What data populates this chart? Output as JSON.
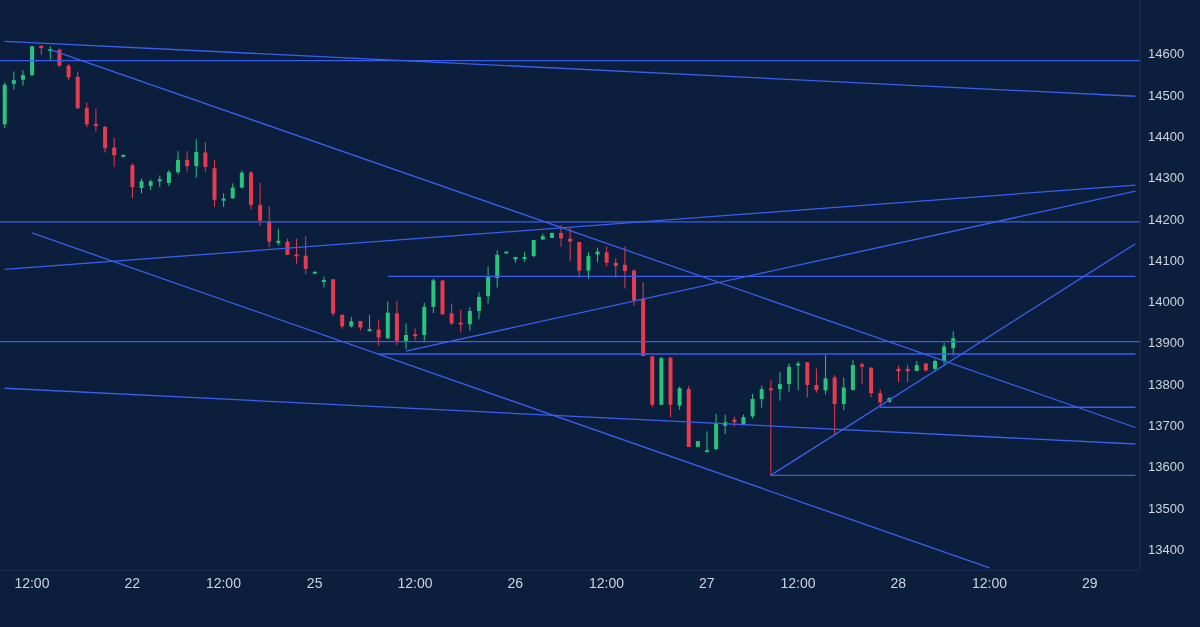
{
  "chart_data": {
    "type": "candlestick",
    "categories": [
      null,
      null,
      null,
      "12:00",
      null,
      null,
      null,
      null,
      null,
      null,
      null,
      null,
      null,
      null,
      "22",
      null,
      null,
      null,
      null,
      null,
      null,
      null,
      null,
      null,
      "12:00",
      null,
      null,
      null,
      null,
      null,
      null,
      null,
      null,
      null,
      "25",
      null,
      null,
      null,
      null,
      null,
      null,
      null,
      null,
      null,
      null,
      "12:00",
      null,
      null,
      null,
      null,
      null,
      null,
      null,
      null,
      null,
      null,
      "26",
      null,
      null,
      null,
      null,
      null,
      null,
      null,
      null,
      null,
      "12:00",
      null,
      null,
      null,
      null,
      null,
      null,
      null,
      null,
      null,
      null,
      "27",
      null,
      null,
      null,
      null,
      null,
      null,
      null,
      null,
      null,
      "12:00",
      null,
      null,
      null,
      null,
      null,
      null,
      null,
      null,
      null,
      null,
      "28",
      null,
      null,
      null,
      null,
      null,
      null,
      null,
      null,
      null,
      "12:00",
      null,
      null,
      null,
      null,
      null,
      null,
      null,
      null,
      null,
      null,
      "29",
      null,
      null,
      null,
      null,
      null
    ],
    "ohlc": [
      [
        14429,
        14530,
        14420,
        14525
      ],
      [
        14527,
        14557,
        14513,
        14536
      ],
      [
        14537,
        14560,
        14523,
        14548
      ],
      [
        14548,
        14618,
        14546,
        14618
      ],
      [
        14619,
        14620,
        14597,
        14614
      ],
      [
        14609,
        14618,
        14586,
        14611
      ],
      [
        14610,
        14612,
        14568,
        14571
      ],
      [
        14571,
        14575,
        14536,
        14543
      ],
      [
        14544,
        14557,
        14466,
        14468
      ],
      [
        14469,
        14482,
        14422,
        14429
      ],
      [
        14430,
        14466,
        14412,
        14425
      ],
      [
        14423,
        14425,
        14361,
        14371
      ],
      [
        14373,
        14396,
        14326,
        14354
      ],
      [
        14353,
        14356,
        14352,
        14355
      ],
      [
        14330,
        14335,
        14250,
        14277
      ],
      [
        14275,
        14298,
        14262,
        14291
      ],
      [
        14280,
        14295,
        14270,
        14291
      ],
      [
        14292,
        14305,
        14277,
        14296
      ],
      [
        14287,
        14318,
        14280,
        14313
      ],
      [
        14313,
        14364,
        14308,
        14343
      ],
      [
        14343,
        14364,
        14315,
        14328
      ],
      [
        14328,
        14393,
        14300,
        14362
      ],
      [
        14361,
        14386,
        14314,
        14326
      ],
      [
        14323,
        14343,
        14229,
        14246
      ],
      [
        14246,
        14262,
        14229,
        14249
      ],
      [
        14250,
        14286,
        14248,
        14276
      ],
      [
        14276,
        14317,
        14274,
        14312
      ],
      [
        14312,
        14316,
        14223,
        14234
      ],
      [
        14234,
        14287,
        14183,
        14196
      ],
      [
        14194,
        14230,
        14132,
        14145
      ],
      [
        14144,
        14176,
        14137,
        14147
      ],
      [
        14145,
        14152,
        14112,
        14113
      ],
      [
        14114,
        14152,
        14091,
        14110
      ],
      [
        14111,
        14158,
        14066,
        14079
      ],
      [
        14071,
        14073,
        14070,
        14072
      ],
      [
        14049,
        14060,
        14034,
        14052
      ],
      [
        14054,
        14054,
        13964,
        13971
      ],
      [
        13968,
        13968,
        13934,
        13940
      ],
      [
        13940,
        13963,
        13937,
        13952
      ],
      [
        13953,
        13953,
        13930,
        13937
      ],
      [
        13932,
        13967,
        13930,
        13933
      ],
      [
        13932,
        13956,
        13893,
        13913
      ],
      [
        13911,
        14000,
        13909,
        13973
      ],
      [
        13971,
        14001,
        13894,
        13905
      ],
      [
        13904,
        13947,
        13885,
        13919
      ],
      [
        13921,
        13935,
        13906,
        13919
      ],
      [
        13919,
        13997,
        13902,
        13987
      ],
      [
        13987,
        14056,
        13972,
        14051
      ],
      [
        14051,
        14051,
        13968,
        13969
      ],
      [
        13971,
        13995,
        13943,
        13947
      ],
      [
        13949,
        13980,
        13925,
        13945
      ],
      [
        13945,
        13987,
        13929,
        13977
      ],
      [
        13977,
        14022,
        13957,
        14011
      ],
      [
        14013,
        14085,
        13995,
        14059
      ],
      [
        14057,
        14124,
        14034,
        14113
      ],
      [
        14120,
        14121,
        14120,
        14121
      ],
      [
        14102,
        14108,
        14094,
        14108
      ],
      [
        14107,
        14120,
        14096,
        14108
      ],
      [
        14110,
        14149,
        14107,
        14149
      ],
      [
        14150,
        14164,
        14150,
        14158
      ],
      [
        14154,
        14167,
        14154,
        14166
      ],
      [
        14166,
        14185,
        14133,
        14153
      ],
      [
        14152,
        14178,
        14097,
        14145
      ],
      [
        14144,
        14144,
        14058,
        14075
      ],
      [
        14075,
        14120,
        14055,
        14110
      ],
      [
        14114,
        14130,
        14095,
        14121
      ],
      [
        14119,
        14133,
        14085,
        14094
      ],
      [
        14094,
        14104,
        14058,
        14086
      ],
      [
        14089,
        14133,
        14032,
        14074
      ],
      [
        14075,
        14078,
        13990,
        14003
      ],
      [
        14007,
        14047,
        13868,
        13868
      ],
      [
        13867,
        13868,
        13744,
        13750
      ],
      [
        13750,
        13866,
        13750,
        13863
      ],
      [
        13864,
        13866,
        13720,
        13750
      ],
      [
        13748,
        13794,
        13738,
        13790
      ],
      [
        13788,
        13796,
        13648,
        13648
      ],
      [
        13648,
        13662,
        13648,
        13662
      ],
      [
        13639,
        13686,
        13636,
        13640
      ],
      [
        13643,
        13728,
        13640,
        13706
      ],
      [
        13699,
        13726,
        13679,
        13708
      ],
      [
        13714,
        13721,
        13697,
        13708
      ],
      [
        13702,
        13726,
        13700,
        13720
      ],
      [
        13722,
        13776,
        13717,
        13764
      ],
      [
        13764,
        13796,
        13743,
        13788
      ],
      [
        13790,
        13810,
        13579,
        13786
      ],
      [
        13788,
        13830,
        13760,
        13800
      ],
      [
        13800,
        13850,
        13781,
        13842
      ],
      [
        13845,
        13855,
        13785,
        13850
      ],
      [
        13853,
        13853,
        13768,
        13798
      ],
      [
        13798,
        13838,
        13779,
        13786
      ],
      [
        13785,
        13870,
        13775,
        13814
      ],
      [
        13816,
        13822,
        13678,
        13752
      ],
      [
        13752,
        13816,
        13737,
        13792
      ],
      [
        13786,
        13858,
        13784,
        13846
      ],
      [
        13848,
        13852,
        13800,
        13842
      ],
      [
        13840,
        13840,
        13768,
        13778
      ],
      [
        13778,
        13787,
        13744,
        13756
      ],
      [
        13757,
        13768,
        13755,
        13766
      ],
      [
        13837,
        13845,
        13805,
        13831
      ],
      [
        13837,
        13847,
        13805,
        13831
      ],
      [
        13832,
        13856,
        13832,
        13846
      ],
      [
        13850,
        13850,
        13831,
        13833
      ],
      [
        13837,
        13860,
        13830,
        13856
      ],
      [
        13856,
        13900,
        13847,
        13891
      ],
      [
        13887,
        13928,
        13869,
        13911
      ],
      null,
      null,
      null,
      null,
      null,
      null,
      null,
      null,
      null,
      null,
      null,
      null,
      null,
      null,
      null,
      null,
      null,
      null,
      null,
      null
    ],
    "series": [
      {
        "type": "line",
        "color": "#3a5ff0",
        "values": [
          14630,
          null,
          null,
          null,
          null,
          null,
          null,
          null,
          null,
          null,
          null,
          null,
          null,
          null,
          null,
          null,
          null,
          null,
          null,
          null,
          null,
          null,
          null,
          null,
          null,
          null,
          null,
          null,
          null,
          null,
          null,
          null,
          null,
          null,
          null,
          null,
          null,
          null,
          null,
          null,
          null,
          null,
          null,
          null,
          null,
          null,
          null,
          null,
          null,
          null,
          null,
          null,
          null,
          null,
          null,
          null,
          null,
          null,
          null,
          null,
          null,
          null,
          null,
          null,
          null,
          null,
          null,
          null,
          null,
          null,
          null,
          null,
          null,
          null,
          null,
          null,
          null,
          null,
          null,
          null,
          null,
          null,
          null,
          null,
          null,
          null,
          null,
          null,
          null,
          null,
          null,
          null,
          null,
          null,
          null,
          null,
          null,
          null,
          null,
          null,
          null,
          null,
          null,
          null,
          null,
          null,
          null,
          null,
          null,
          null,
          null,
          null,
          null,
          null,
          null,
          null,
          null,
          null,
          null,
          null,
          null,
          null,
          null,
          null,
          14497
        ]
      },
      {
        "type": "line",
        "color": "#3a5ff0",
        "values": [
          null,
          null,
          null,
          null,
          null,
          14610,
          null,
          null,
          null,
          null,
          null,
          null,
          null,
          null,
          null,
          null,
          null,
          null,
          null,
          null,
          null,
          null,
          null,
          null,
          null,
          null,
          null,
          null,
          null,
          null,
          null,
          null,
          null,
          null,
          null,
          null,
          null,
          null,
          null,
          null,
          null,
          null,
          null,
          null,
          null,
          null,
          null,
          null,
          null,
          null,
          null,
          null,
          null,
          null,
          null,
          null,
          null,
          null,
          null,
          null,
          null,
          null,
          null,
          null,
          null,
          null,
          null,
          null,
          null,
          null,
          null,
          null,
          null,
          null,
          null,
          null,
          null,
          null,
          null,
          null,
          null,
          null,
          null,
          null,
          null,
          null,
          null,
          null,
          null,
          null,
          null,
          null,
          null,
          null,
          null,
          null,
          null,
          null,
          null,
          null,
          null,
          null,
          null,
          null,
          null,
          null,
          null,
          null,
          null,
          null,
          null,
          null,
          null,
          null,
          null,
          null,
          null,
          null,
          null,
          null,
          null,
          null,
          null,
          null,
          13695
        ]
      },
      {
        "type": "line",
        "color": "#3a5ff0",
        "values": [
          14078,
          null,
          null,
          null,
          null,
          null,
          null,
          null,
          null,
          null,
          null,
          null,
          null,
          null,
          null,
          null,
          null,
          null,
          null,
          null,
          null,
          null,
          null,
          null,
          null,
          null,
          null,
          null,
          null,
          null,
          null,
          null,
          null,
          null,
          null,
          null,
          null,
          null,
          null,
          null,
          null,
          null,
          null,
          null,
          null,
          null,
          null,
          null,
          null,
          null,
          null,
          null,
          null,
          null,
          null,
          null,
          null,
          null,
          null,
          null,
          null,
          null,
          null,
          null,
          null,
          null,
          null,
          null,
          null,
          null,
          null,
          null,
          null,
          null,
          null,
          null,
          null,
          null,
          null,
          null,
          null,
          null,
          null,
          null,
          null,
          null,
          null,
          null,
          null,
          null,
          null,
          null,
          null,
          null,
          null,
          null,
          null,
          null,
          null,
          null,
          null,
          null,
          null,
          null,
          null,
          null,
          null,
          null,
          null,
          null,
          null,
          null,
          null,
          null,
          null,
          null,
          null,
          null,
          null,
          null,
          null,
          null,
          null,
          null,
          14282
        ]
      },
      {
        "type": "line",
        "color": "#3a5ff0",
        "values": [
          null,
          null,
          null,
          null,
          null,
          null,
          null,
          null,
          null,
          null,
          null,
          null,
          null,
          null,
          null,
          null,
          null,
          null,
          null,
          null,
          null,
          null,
          null,
          null,
          null,
          null,
          null,
          null,
          null,
          null,
          null,
          null,
          null,
          null,
          null,
          null,
          null,
          null,
          null,
          null,
          null,
          null,
          null,
          null,
          13880,
          null,
          null,
          null,
          null,
          null,
          null,
          null,
          null,
          null,
          null,
          null,
          null,
          null,
          null,
          null,
          null,
          null,
          null,
          null,
          null,
          null,
          null,
          null,
          null,
          null,
          null,
          null,
          null,
          null,
          null,
          null,
          null,
          null,
          null,
          null,
          null,
          null,
          null,
          null,
          null,
          null,
          null,
          null,
          null,
          null,
          null,
          null,
          null,
          null,
          null,
          null,
          null,
          null,
          null,
          null,
          null,
          null,
          null,
          null,
          null,
          null,
          null,
          null,
          null,
          null,
          null,
          null,
          null,
          null,
          null,
          null,
          null,
          null,
          null,
          null,
          null,
          null,
          null,
          null,
          14267
        ]
      },
      {
        "type": "line",
        "color": "#3a5ff0",
        "values": [
          null,
          null,
          null,
          14166,
          null,
          null,
          null,
          null,
          null,
          null,
          null,
          null,
          null,
          null,
          null,
          null,
          null,
          null,
          null,
          null,
          null,
          null,
          null,
          null,
          null,
          null,
          null,
          null,
          null,
          null,
          null,
          null,
          null,
          null,
          null,
          null,
          null,
          null,
          null,
          null,
          null,
          null,
          null,
          null,
          null,
          null,
          null,
          null,
          null,
          null,
          null,
          null,
          null,
          null,
          null,
          null,
          null,
          null,
          null,
          null,
          null,
          null,
          null,
          null,
          null,
          null,
          null,
          null,
          null,
          null,
          null,
          null,
          null,
          null,
          null,
          null,
          null,
          null,
          null,
          null,
          null,
          null,
          null,
          null,
          null,
          null,
          null,
          null,
          null,
          null,
          null,
          null,
          null,
          null,
          null,
          null,
          null,
          null,
          null,
          null,
          null,
          null,
          null,
          null,
          null,
          null,
          null,
          null,
          13355,
          null,
          null,
          null,
          null,
          null,
          null,
          null,
          null,
          null,
          null,
          null,
          null,
          null,
          null,
          null,
          null
        ]
      },
      {
        "type": "line",
        "color": "#3a5ff0",
        "values": [
          13790,
          null,
          null,
          null,
          null,
          null,
          null,
          null,
          null,
          null,
          null,
          null,
          null,
          null,
          null,
          null,
          null,
          null,
          null,
          null,
          null,
          null,
          null,
          null,
          null,
          null,
          null,
          null,
          null,
          null,
          null,
          null,
          null,
          null,
          null,
          null,
          null,
          null,
          null,
          null,
          null,
          null,
          null,
          null,
          null,
          null,
          null,
          null,
          null,
          null,
          null,
          null,
          null,
          null,
          null,
          null,
          null,
          null,
          null,
          null,
          null,
          null,
          null,
          null,
          null,
          null,
          null,
          null,
          null,
          null,
          null,
          null,
          null,
          null,
          null,
          null,
          null,
          null,
          null,
          null,
          null,
          null,
          null,
          null,
          null,
          null,
          null,
          null,
          null,
          null,
          null,
          null,
          null,
          null,
          null,
          null,
          null,
          null,
          null,
          null,
          null,
          null,
          null,
          null,
          null,
          null,
          null,
          null,
          null,
          null,
          null,
          null,
          null,
          null,
          null,
          null,
          null,
          null,
          null,
          null,
          null,
          null,
          null,
          null,
          13655
        ]
      },
      {
        "type": "line",
        "color": "#3a5ff0",
        "values": [
          null,
          null,
          null,
          null,
          null,
          null,
          null,
          null,
          null,
          null,
          null,
          null,
          null,
          null,
          null,
          null,
          null,
          null,
          null,
          null,
          null,
          null,
          null,
          null,
          null,
          null,
          null,
          null,
          null,
          null,
          null,
          null,
          null,
          null,
          null,
          null,
          null,
          null,
          null,
          null,
          null,
          null,
          null,
          null,
          null,
          null,
          null,
          null,
          null,
          null,
          null,
          null,
          null,
          null,
          null,
          null,
          null,
          null,
          null,
          null,
          null,
          null,
          null,
          null,
          null,
          null,
          null,
          null,
          null,
          null,
          null,
          null,
          null,
          null,
          null,
          null,
          null,
          null,
          null,
          null,
          null,
          null,
          null,
          null,
          13579,
          null,
          null,
          null,
          null,
          null,
          null,
          null,
          null,
          null,
          null,
          null,
          null,
          null,
          null,
          null,
          null,
          null,
          null,
          null,
          null,
          null,
          null,
          null,
          null,
          null,
          null,
          null,
          null,
          null,
          null,
          null,
          null,
          null,
          null,
          null,
          null,
          null,
          null,
          null,
          14140
        ]
      },
      {
        "type": "line",
        "color": "#3a5ff0",
        "values": [
          null,
          null,
          null,
          null,
          null,
          null,
          null,
          null,
          null,
          null,
          null,
          null,
          null,
          null,
          null,
          null,
          null,
          null,
          null,
          null,
          null,
          null,
          null,
          null,
          null,
          null,
          null,
          null,
          null,
          null,
          null,
          null,
          null,
          null,
          null,
          null,
          null,
          null,
          null,
          null,
          null,
          null,
          14061,
          null,
          null,
          null,
          null,
          null,
          null,
          null,
          null,
          null,
          null,
          null,
          null,
          null,
          null,
          null,
          null,
          null,
          null,
          null,
          null,
          null,
          null,
          null,
          null,
          null,
          null,
          null,
          null,
          null,
          null,
          null,
          null,
          null,
          null,
          null,
          null,
          null,
          null,
          null,
          null,
          null,
          null,
          null,
          null,
          null,
          null,
          null,
          null,
          null,
          null,
          null,
          null,
          null,
          null,
          null,
          null,
          null,
          null,
          null,
          null,
          null,
          null,
          null,
          null,
          null,
          null,
          null,
          null,
          null,
          null,
          null,
          null,
          null,
          null,
          null,
          null,
          null,
          null,
          null,
          null,
          null,
          14061
        ]
      },
      {
        "type": "line",
        "color": "#3a5ff0",
        "values": [
          null,
          null,
          null,
          null,
          null,
          null,
          null,
          null,
          null,
          null,
          null,
          null,
          null,
          null,
          null,
          null,
          null,
          null,
          null,
          null,
          null,
          null,
          null,
          null,
          null,
          null,
          null,
          null,
          null,
          null,
          null,
          null,
          null,
          null,
          null,
          null,
          null,
          null,
          null,
          null,
          null,
          13873,
          null,
          null,
          null,
          null,
          null,
          null,
          null,
          null,
          null,
          null,
          null,
          null,
          null,
          null,
          null,
          null,
          null,
          null,
          null,
          null,
          null,
          null,
          null,
          null,
          null,
          null,
          null,
          null,
          null,
          null,
          null,
          null,
          null,
          null,
          null,
          null,
          null,
          null,
          null,
          null,
          null,
          null,
          null,
          null,
          null,
          null,
          null,
          null,
          null,
          null,
          null,
          null,
          null,
          null,
          null,
          null,
          null,
          null,
          null,
          null,
          null,
          null,
          null,
          null,
          null,
          null,
          null,
          null,
          null,
          null,
          null,
          null,
          null,
          null,
          null,
          null,
          null,
          null,
          null,
          null,
          null,
          null,
          13873
        ]
      },
      {
        "type": "line",
        "color": "#3a5ff0",
        "values": [
          null,
          null,
          null,
          null,
          null,
          null,
          null,
          null,
          null,
          null,
          null,
          null,
          null,
          null,
          null,
          null,
          null,
          null,
          null,
          null,
          null,
          null,
          null,
          null,
          null,
          null,
          null,
          null,
          null,
          null,
          null,
          null,
          null,
          null,
          null,
          null,
          null,
          null,
          null,
          null,
          null,
          null,
          null,
          null,
          null,
          null,
          null,
          null,
          null,
          null,
          null,
          null,
          null,
          null,
          null,
          null,
          null,
          null,
          null,
          null,
          null,
          null,
          null,
          null,
          null,
          null,
          null,
          null,
          null,
          null,
          null,
          null,
          null,
          null,
          null,
          null,
          null,
          null,
          null,
          null,
          null,
          null,
          null,
          null,
          null,
          null,
          null,
          null,
          null,
          null,
          null,
          null,
          null,
          null,
          null,
          null,
          13744,
          null,
          null,
          null,
          null,
          null,
          null,
          null,
          null,
          null,
          null,
          null,
          null,
          null,
          null,
          null,
          null,
          null,
          null,
          null,
          null,
          null,
          null,
          null,
          null,
          null,
          null,
          null,
          13744
        ]
      },
      {
        "type": "line",
        "color": "#3a5ff0",
        "values": [
          null,
          null,
          null,
          null,
          null,
          null,
          null,
          null,
          null,
          null,
          null,
          null,
          null,
          null,
          null,
          null,
          null,
          null,
          null,
          null,
          null,
          null,
          null,
          null,
          null,
          null,
          null,
          null,
          null,
          null,
          null,
          null,
          null,
          null,
          null,
          null,
          null,
          null,
          null,
          null,
          null,
          null,
          null,
          null,
          null,
          null,
          null,
          null,
          null,
          null,
          null,
          null,
          null,
          null,
          null,
          null,
          null,
          null,
          null,
          null,
          null,
          null,
          null,
          null,
          null,
          null,
          null,
          null,
          null,
          null,
          null,
          null,
          null,
          null,
          null,
          null,
          null,
          null,
          null,
          null,
          null,
          null,
          null,
          null,
          13579,
          null,
          null,
          null,
          null,
          null,
          null,
          null,
          null,
          null,
          null,
          null,
          null,
          null,
          null,
          null,
          null,
          null,
          null,
          null,
          null,
          null,
          null,
          null,
          null,
          null,
          null,
          null,
          null,
          null,
          null,
          null,
          null,
          null,
          null,
          null,
          null,
          null,
          null,
          null,
          13579
        ]
      }
    ],
    "ref_lines": [
      {
        "axis": "y",
        "value": 14583,
        "color": "#3a5ff0"
      },
      {
        "axis": "y",
        "value": 14193,
        "color": "#3a5ff0"
      },
      {
        "axis": "y",
        "value": 13903,
        "color": "#3a5ff0"
      }
    ],
    "ylim": [
      13350,
      14730
    ],
    "yticks": [
      13400,
      13500,
      13600,
      13700,
      13800,
      13900,
      14000,
      14100,
      14200,
      14300,
      14400,
      14500,
      14600
    ]
  }
}
